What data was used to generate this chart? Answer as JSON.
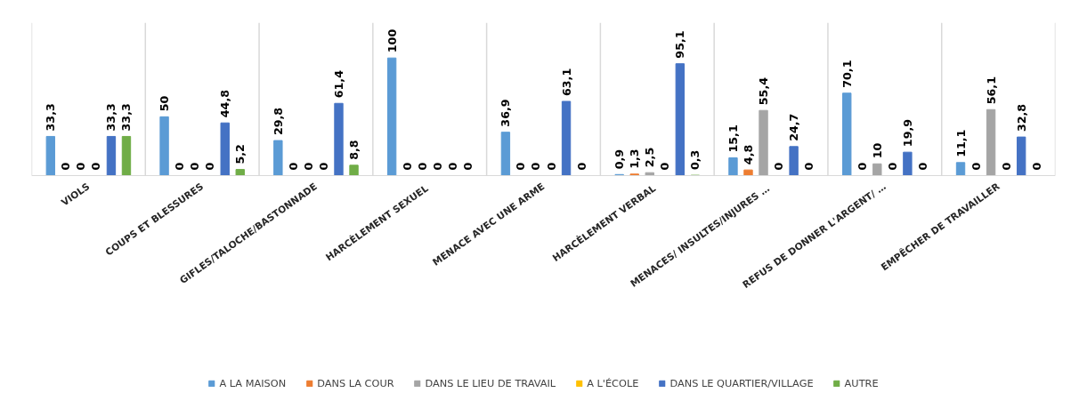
{
  "chart_data": {
    "type": "bar",
    "categories": [
      "VIOLS",
      "COUPS ET BLESSURES",
      "GIFLES/TALOCHE/BASTONNADE",
      "HARCÈLEMENT  SEXUEL",
      "MENACE AVEC UNE ARME",
      "HARCÈLEMENT  VERBAL",
      "MENACES/  INSULTES/INJURES …",
      "REFUS DE DONNER L'ARGENT/ …",
      "EMPÊCHER DE TRAVAILLER"
    ],
    "series": [
      {
        "name": "A LA MAISON",
        "color": "#5b9bd5",
        "values": [
          33.3,
          50,
          29.8,
          100,
          36.9,
          0.9,
          15.1,
          70.1,
          11.1
        ],
        "value_labels": [
          "33,3",
          "50",
          "29,8",
          "100",
          "36,9",
          "0,9",
          "15,1",
          "70,1",
          "11,1"
        ]
      },
      {
        "name": "DANS LA COUR",
        "color": "#ed7d31",
        "values": [
          0,
          0,
          0,
          0,
          0,
          1.3,
          4.8,
          0,
          0
        ],
        "value_labels": [
          "0",
          "0",
          "0",
          "0",
          "0",
          "1,3",
          "4,8",
          "0",
          "0"
        ]
      },
      {
        "name": "DANS LE LIEU DE TRAVAIL",
        "color": "#a5a5a5",
        "values": [
          0,
          0,
          0,
          0,
          0,
          2.5,
          55.4,
          10,
          56.1
        ],
        "value_labels": [
          "0",
          "0",
          "0",
          "0",
          "0",
          "2,5",
          "55,4",
          "10",
          "56,1"
        ]
      },
      {
        "name": "A L'ÉCOLE",
        "color": "#ffc000",
        "values": [
          0,
          0,
          0,
          0,
          0,
          0,
          0,
          0,
          0
        ],
        "value_labels": [
          "0",
          "0",
          "0",
          "0",
          "0",
          "0",
          "0",
          "0",
          "0"
        ]
      },
      {
        "name": "DANS LE QUARTIER/VILLAGE",
        "color": "#4472c4",
        "values": [
          33.3,
          44.8,
          61.4,
          0,
          63.1,
          95.1,
          24.7,
          19.9,
          32.8
        ],
        "value_labels": [
          "33,3",
          "44,8",
          "61,4",
          "0",
          "63,1",
          "95,1",
          "24,7",
          "19,9",
          "32,8"
        ]
      },
      {
        "name": "AUTRE",
        "color": "#70ad47",
        "values": [
          33.3,
          5.2,
          8.8,
          0,
          0,
          0.3,
          0,
          0,
          0
        ],
        "value_labels": [
          "33,3",
          "5,2",
          "8,8",
          "0",
          "0",
          "0,3",
          "0",
          "0",
          "0"
        ]
      }
    ],
    "grid": "x",
    "legend": "bottom"
  }
}
